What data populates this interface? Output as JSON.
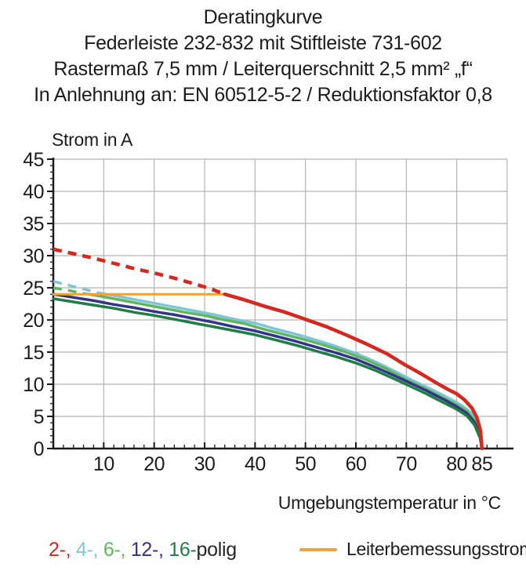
{
  "header": {
    "line1": "Deratingkurve",
    "line2": "Federleiste 232-832 mit Stiftleiste 731-602",
    "line3": "Rastermaß 7,5 mm / Leiterquerschnitt 2,5 mm² „f“",
    "line4": "In Anlehnung an: EN 60512-5-2 / Reduktionsfaktor 0,8"
  },
  "legend": {
    "poles": [
      {
        "text": "2-, ",
        "color": "#d5281e"
      },
      {
        "text": "4-, ",
        "color": "#7fc4d9"
      },
      {
        "text": "6-, ",
        "color": "#5eb75e"
      },
      {
        "text": "12-, ",
        "color": "#33338a"
      },
      {
        "text": "16-",
        "color": "#1f7d46"
      },
      {
        "text": "polig",
        "color": "#262626"
      }
    ],
    "rated_current": {
      "label": "Leiterbemessungsstrom",
      "color": "#f0a232"
    }
  },
  "colors": {
    "axis": "#1a1a1a",
    "grid": "#b3b3b3",
    "text": "#1c1c1c"
  },
  "chart_data": {
    "type": "line",
    "title": "Deratingkurve",
    "xlabel": "Umgebungstemperatur in °C",
    "ylabel": "Strom in A",
    "xlim": [
      0,
      90
    ],
    "ylim": [
      0,
      45
    ],
    "grid": true,
    "xticks_major": [
      10,
      20,
      30,
      40,
      50,
      60,
      70,
      80,
      85
    ],
    "yticks_major": [
      0,
      5,
      10,
      15,
      20,
      25,
      30,
      35,
      40,
      45
    ],
    "x_minor_step": 2,
    "y_minor_step": 1,
    "legend_position": "bottom",
    "series": [
      {
        "name": "4-polig",
        "color": "#7fc4d9",
        "width": 3.5,
        "dashed": [
          [
            0,
            26
          ],
          [
            3,
            25.4
          ],
          [
            6,
            24.8
          ],
          [
            9,
            24.2
          ]
        ],
        "solid": [
          [
            9,
            24.2
          ],
          [
            12,
            23.8
          ],
          [
            16,
            23.2
          ],
          [
            20,
            22.6
          ],
          [
            24,
            22.0
          ],
          [
            28,
            21.4
          ],
          [
            32,
            20.8
          ],
          [
            36,
            20.1
          ],
          [
            40,
            19.5
          ],
          [
            44,
            18.6
          ],
          [
            48,
            17.8
          ],
          [
            52,
            16.9
          ],
          [
            56,
            15.9
          ],
          [
            60,
            14.8
          ],
          [
            63,
            13.8
          ],
          [
            66,
            12.7
          ],
          [
            69,
            11.5
          ],
          [
            72,
            10.3
          ],
          [
            75,
            9.2
          ],
          [
            77,
            8.4
          ],
          [
            79,
            7.6
          ],
          [
            81,
            6.7
          ],
          [
            82.5,
            5.8
          ],
          [
            83.7,
            4.6
          ],
          [
            84.6,
            2.6
          ],
          [
            85,
            0
          ]
        ]
      },
      {
        "name": "6-polig",
        "color": "#5eb75e",
        "width": 3.5,
        "dashed": [
          [
            0,
            25
          ],
          [
            3,
            24.6
          ],
          [
            6,
            24.1
          ],
          [
            7,
            24
          ]
        ],
        "solid": [
          [
            7,
            24
          ],
          [
            10,
            23.6
          ],
          [
            14,
            23.0
          ],
          [
            18,
            22.4
          ],
          [
            22,
            21.8
          ],
          [
            26,
            21.2
          ],
          [
            30,
            20.7
          ],
          [
            34,
            20.0
          ],
          [
            38,
            19.4
          ],
          [
            42,
            18.5
          ],
          [
            46,
            17.7
          ],
          [
            50,
            16.9
          ],
          [
            54,
            16.0
          ],
          [
            58,
            15.0
          ],
          [
            62,
            13.8
          ],
          [
            66,
            12.4
          ],
          [
            70,
            10.7
          ],
          [
            73,
            9.6
          ],
          [
            76,
            8.4
          ],
          [
            78,
            7.6
          ],
          [
            80,
            6.8
          ],
          [
            82,
            5.8
          ],
          [
            83.5,
            4.4
          ],
          [
            84.6,
            2.3
          ],
          [
            85,
            0
          ]
        ]
      },
      {
        "name": "12-polig",
        "color": "#33338a",
        "width": 3.5,
        "solid": [
          [
            0,
            24
          ],
          [
            4,
            23.5
          ],
          [
            8,
            23.0
          ],
          [
            12,
            22.4
          ],
          [
            16,
            21.9
          ],
          [
            20,
            21.3
          ],
          [
            24,
            20.8
          ],
          [
            28,
            20.2
          ],
          [
            32,
            19.6
          ],
          [
            36,
            18.9
          ],
          [
            40,
            18.3
          ],
          [
            44,
            17.5
          ],
          [
            48,
            16.7
          ],
          [
            52,
            15.8
          ],
          [
            56,
            14.9
          ],
          [
            60,
            13.9
          ],
          [
            64,
            12.6
          ],
          [
            68,
            11.2
          ],
          [
            71,
            10.1
          ],
          [
            74,
            9.0
          ],
          [
            76,
            8.2
          ],
          [
            78,
            7.4
          ],
          [
            80,
            6.5
          ],
          [
            82,
            5.5
          ],
          [
            83.5,
            4.1
          ],
          [
            84.6,
            2.0
          ],
          [
            85,
            0
          ]
        ]
      },
      {
        "name": "16-polig",
        "color": "#1f7d46",
        "width": 3.5,
        "solid": [
          [
            0,
            23.3
          ],
          [
            4,
            22.8
          ],
          [
            8,
            22.3
          ],
          [
            12,
            21.8
          ],
          [
            16,
            21.2
          ],
          [
            20,
            20.7
          ],
          [
            24,
            20.1
          ],
          [
            28,
            19.5
          ],
          [
            32,
            18.9
          ],
          [
            36,
            18.3
          ],
          [
            40,
            17.7
          ],
          [
            44,
            16.9
          ],
          [
            48,
            16.1
          ],
          [
            52,
            15.2
          ],
          [
            56,
            14.3
          ],
          [
            60,
            13.3
          ],
          [
            64,
            12.1
          ],
          [
            68,
            10.7
          ],
          [
            71,
            9.6
          ],
          [
            74,
            8.5
          ],
          [
            76,
            7.7
          ],
          [
            78,
            6.9
          ],
          [
            80,
            6.1
          ],
          [
            82,
            5.1
          ],
          [
            83.5,
            3.7
          ],
          [
            84.6,
            1.7
          ],
          [
            85,
            0
          ]
        ]
      },
      {
        "name": "Leiterbemessungsstrom",
        "color": "#f0a232",
        "width": 3,
        "solid": [
          [
            0,
            24
          ],
          [
            34,
            24
          ]
        ]
      },
      {
        "name": "2-polig",
        "color": "#d5281e",
        "width": 4.5,
        "dashed": [
          [
            0,
            31
          ],
          [
            4,
            30.3
          ],
          [
            8,
            29.6
          ],
          [
            12,
            28.8
          ],
          [
            16,
            28.0
          ],
          [
            20,
            27.3
          ],
          [
            24,
            26.5
          ],
          [
            28,
            25.6
          ],
          [
            31,
            24.9
          ],
          [
            34,
            24
          ]
        ],
        "solid": [
          [
            34,
            24
          ],
          [
            38,
            23.1
          ],
          [
            42,
            22.1
          ],
          [
            46,
            21.2
          ],
          [
            50,
            20.1
          ],
          [
            54,
            19.0
          ],
          [
            58,
            17.7
          ],
          [
            62,
            16.3
          ],
          [
            66,
            14.8
          ],
          [
            70,
            12.9
          ],
          [
            73,
            11.6
          ],
          [
            76,
            10.2
          ],
          [
            78,
            9.3
          ],
          [
            80,
            8.5
          ],
          [
            81.5,
            7.6
          ],
          [
            83,
            6.3
          ],
          [
            84,
            4.8
          ],
          [
            84.7,
            2.8
          ],
          [
            85,
            0
          ]
        ]
      }
    ]
  }
}
